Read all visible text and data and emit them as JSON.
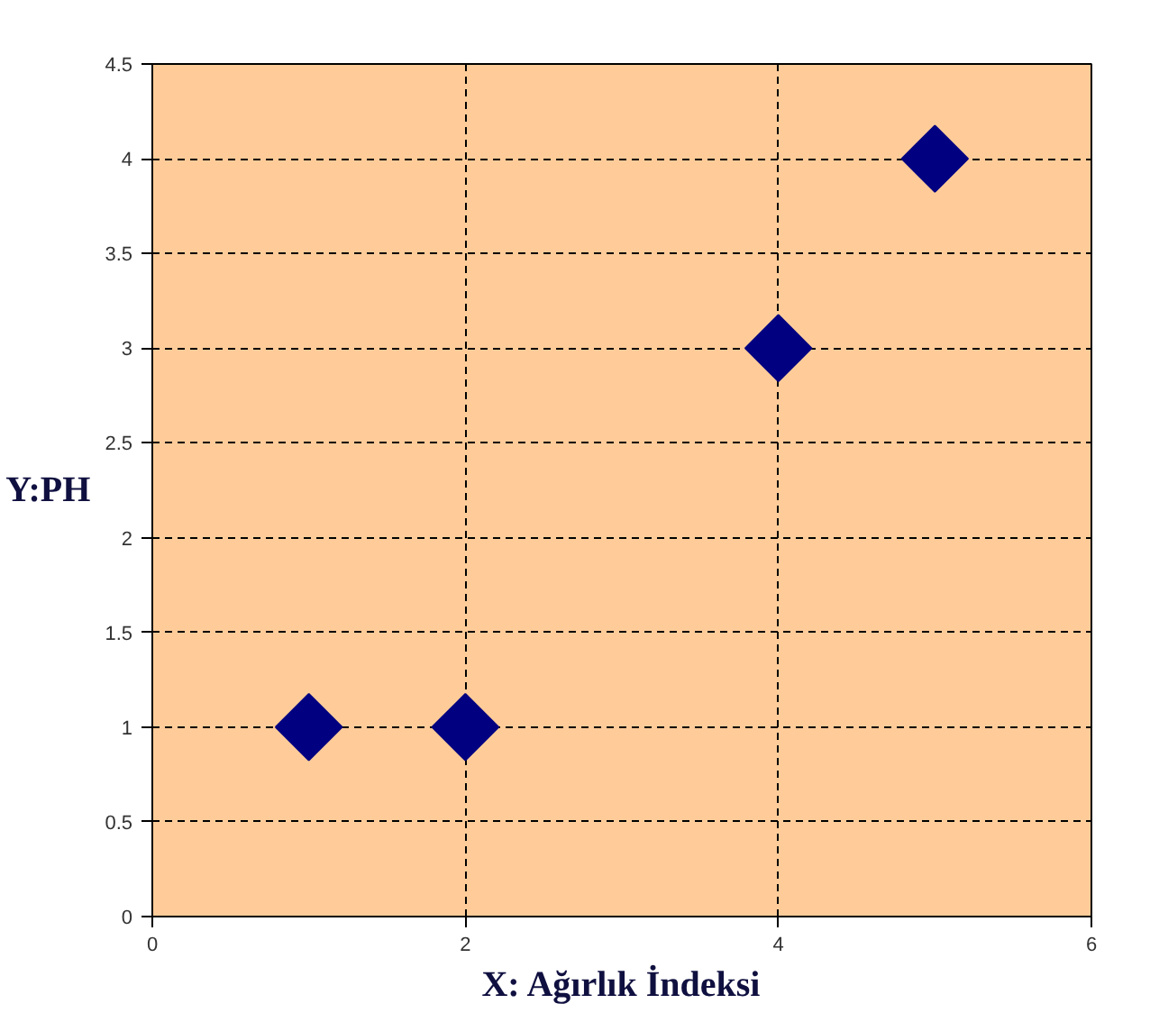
{
  "chart_data": {
    "type": "scatter",
    "xlabel": "X: Ağırlık İndeksi",
    "ylabel": "Y:PH",
    "x": [
      1,
      2,
      4,
      5
    ],
    "series": [
      {
        "color": "#000080",
        "values": [
          1,
          1,
          3,
          4
        ]
      }
    ],
    "xlim": [
      0,
      6
    ],
    "xticks": [
      0,
      2,
      4,
      6
    ],
    "ylim": [
      0,
      4.5
    ],
    "yticks": [
      0,
      0.5,
      1,
      1.5,
      2,
      2.5,
      3,
      3.5,
      4,
      4.5
    ],
    "grid": true,
    "marker": "diamond"
  }
}
